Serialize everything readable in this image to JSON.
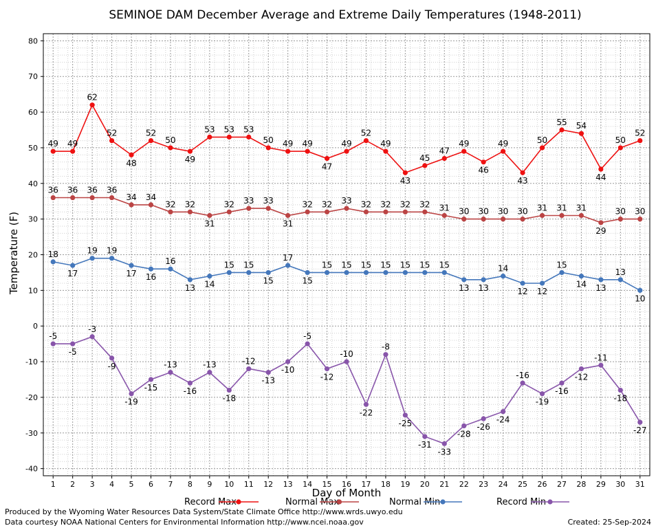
{
  "chart_data": {
    "type": "line",
    "title": "SEMINOE DAM December Average and Extreme Daily Temperatures (1948-2011)",
    "xlabel": "Day of Month",
    "ylabel": "Temperature (F)",
    "ylim": [
      -42,
      82
    ],
    "yticks": [
      -40,
      -30,
      -20,
      -10,
      0,
      10,
      20,
      30,
      40,
      50,
      60,
      70,
      80
    ],
    "x": [
      1,
      2,
      3,
      4,
      5,
      6,
      7,
      8,
      9,
      10,
      11,
      12,
      13,
      14,
      15,
      16,
      17,
      18,
      19,
      20,
      21,
      22,
      23,
      24,
      25,
      26,
      27,
      28,
      29,
      30,
      31
    ],
    "grid": true,
    "legend_position": "bottom",
    "series": [
      {
        "name": "Record Max",
        "color": "#ee1111",
        "values": [
          49,
          49,
          62,
          52,
          48,
          52,
          50,
          49,
          53,
          53,
          53,
          50,
          49,
          49,
          47,
          49,
          52,
          49,
          43,
          45,
          47,
          49,
          46,
          49,
          43,
          50,
          55,
          54,
          44,
          50,
          52
        ]
      },
      {
        "name": "Normal Max",
        "color": "#bb4444",
        "values": [
          36,
          36,
          36,
          36,
          34,
          34,
          32,
          32,
          31,
          32,
          33,
          33,
          31,
          32,
          32,
          33,
          32,
          32,
          32,
          32,
          31,
          30,
          30,
          30,
          30,
          31,
          31,
          31,
          29,
          30,
          30
        ]
      },
      {
        "name": "Normal Min",
        "color": "#4477bb",
        "values": [
          18,
          17,
          19,
          19,
          17,
          16,
          16,
          13,
          14,
          15,
          15,
          15,
          17,
          15,
          15,
          15,
          15,
          15,
          15,
          15,
          15,
          13,
          13,
          14,
          12,
          12,
          15,
          14,
          13,
          13,
          10
        ]
      },
      {
        "name": "Record Min",
        "color": "#8855aa",
        "values": [
          -5,
          -5,
          -3,
          -9,
          -19,
          -15,
          -13,
          -16,
          -13,
          -18,
          -12,
          -13,
          -10,
          -5,
          -12,
          -10,
          -22,
          -8,
          -25,
          -31,
          -33,
          -28,
          -26,
          -24,
          -16,
          -19,
          -16,
          -12,
          -11,
          -18,
          -27
        ]
      }
    ]
  },
  "footer": {
    "produced_by": "Produced by the Wyoming Water Resources Data System/State Climate Office http://www.wrds.uwyo.edu",
    "courtesy": "Data courtesy NOAA National Centers for Environmental Information http://www.ncei.noaa.gov",
    "created": "Created:  25-Sep-2024"
  }
}
